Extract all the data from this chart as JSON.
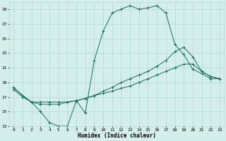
{
  "xlabel": "Humidex (Indice chaleur)",
  "xlim": [
    -0.5,
    23.5
  ],
  "ylim": [
    13,
    30
  ],
  "xticks": [
    0,
    1,
    2,
    3,
    4,
    5,
    6,
    7,
    8,
    9,
    10,
    11,
    12,
    13,
    14,
    15,
    16,
    17,
    18,
    19,
    20,
    21,
    22,
    23
  ],
  "yticks": [
    13,
    15,
    17,
    19,
    21,
    23,
    25,
    27,
    29
  ],
  "bg_color": "#d4eeeb",
  "grid_color": "#b0d8d2",
  "line_color": "#1a6b5e",
  "line1_x": [
    0,
    1,
    2,
    3,
    4,
    5,
    6,
    7,
    8,
    9,
    10,
    11,
    12,
    13,
    14,
    15,
    16,
    17,
    18,
    19,
    20,
    21,
    22,
    23
  ],
  "line1_y": [
    18.0,
    17.0,
    16.3,
    15.0,
    13.5,
    13.0,
    13.0,
    16.5,
    14.8,
    22.0,
    26.0,
    28.5,
    29.0,
    29.5,
    29.0,
    29.2,
    29.5,
    28.5,
    24.2,
    22.8,
    20.8,
    20.2,
    19.5,
    19.5
  ],
  "line2_x": [
    0,
    1,
    2,
    3,
    4,
    5,
    6,
    7,
    8,
    9,
    10,
    11,
    12,
    13,
    14,
    15,
    16,
    17,
    18,
    19,
    20,
    21,
    22,
    23
  ],
  "line2_y": [
    18.3,
    17.2,
    16.3,
    16.3,
    16.3,
    16.3,
    16.3,
    16.5,
    16.8,
    17.2,
    17.8,
    18.3,
    19.0,
    19.5,
    20.0,
    20.5,
    21.2,
    22.0,
    23.2,
    23.8,
    22.5,
    20.5,
    19.8,
    19.5
  ],
  "line3_x": [
    0,
    1,
    2,
    3,
    4,
    5,
    6,
    7,
    8,
    9,
    10,
    11,
    12,
    13,
    14,
    15,
    16,
    17,
    18,
    19,
    20,
    21,
    22,
    23
  ],
  "line3_y": [
    18.3,
    17.2,
    16.3,
    16.0,
    16.0,
    16.0,
    16.3,
    16.5,
    16.8,
    17.2,
    17.5,
    17.8,
    18.2,
    18.5,
    19.0,
    19.5,
    20.0,
    20.5,
    21.0,
    21.5,
    21.5,
    20.5,
    19.8,
    19.5
  ]
}
